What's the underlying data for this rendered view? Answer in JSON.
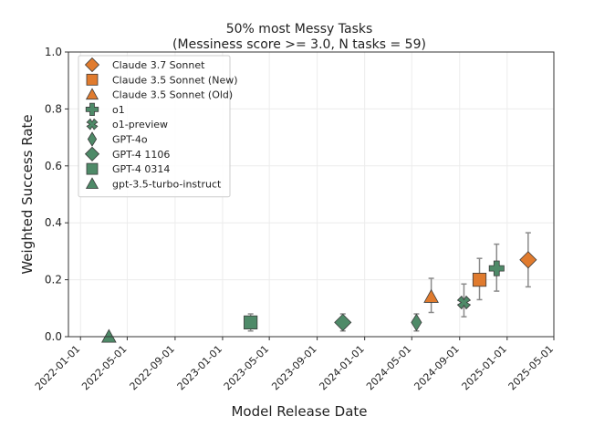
{
  "chart_data": {
    "type": "scatter",
    "title": "50% most Messy Tasks",
    "subtitle": "(Messiness score >= 3.0, N tasks = 59)",
    "xlabel": "Model Release Date",
    "ylabel": "Weighted Success Rate",
    "ylim": [
      0.0,
      1.0
    ],
    "xlim": [
      "2021-12-01",
      "2025-05-01"
    ],
    "x_ticks": [
      "2022-01-01",
      "2022-05-01",
      "2022-09-01",
      "2023-01-01",
      "2023-05-01",
      "2023-09-01",
      "2024-01-01",
      "2024-05-01",
      "2024-09-01",
      "2025-01-01",
      "2025-05-01"
    ],
    "y_ticks": [
      "0.0",
      "0.2",
      "0.4",
      "0.6",
      "0.8",
      "1.0"
    ],
    "grid": true,
    "legend_position": "top-left",
    "colors": {
      "anthropic": "#e07b2e",
      "openai": "#4e8a68",
      "edge": "#3a3a3a",
      "errorbar": "#8a8a8a"
    },
    "series": [
      {
        "name": "Claude 3.7 Sonnet",
        "marker": "diamond",
        "color": "#e07b2e",
        "x": "2025-02-24",
        "y": 0.27,
        "yerr": [
          0.175,
          0.365
        ]
      },
      {
        "name": "Claude 3.5 Sonnet (New)",
        "marker": "square",
        "color": "#e07b2e",
        "x": "2024-10-22",
        "y": 0.2,
        "yerr": [
          0.13,
          0.275
        ]
      },
      {
        "name": "Claude 3.5 Sonnet (Old)",
        "marker": "triangle",
        "color": "#e07b2e",
        "x": "2024-06-20",
        "y": 0.14,
        "yerr": [
          0.085,
          0.205
        ]
      },
      {
        "name": "o1",
        "marker": "plus",
        "color": "#4e8a68",
        "x": "2024-12-05",
        "y": 0.24,
        "yerr": [
          0.16,
          0.325
        ]
      },
      {
        "name": "o1-preview",
        "marker": "x",
        "color": "#4e8a68",
        "x": "2024-09-12",
        "y": 0.12,
        "yerr": [
          0.07,
          0.185
        ]
      },
      {
        "name": "GPT-4o",
        "marker": "thin_diamond",
        "color": "#4e8a68",
        "x": "2024-05-13",
        "y": 0.05,
        "yerr": [
          0.02,
          0.08
        ]
      },
      {
        "name": "GPT-4 1106",
        "marker": "diamond",
        "color": "#4e8a68",
        "x": "2023-11-06",
        "y": 0.05,
        "yerr": [
          0.02,
          0.08
        ]
      },
      {
        "name": "GPT-4 0314",
        "marker": "square",
        "color": "#4e8a68",
        "x": "2023-03-14",
        "y": 0.05,
        "yerr": [
          0.02,
          0.08
        ]
      },
      {
        "name": "gpt-3.5-turbo-instruct",
        "marker": "triangle",
        "color": "#4e8a68",
        "x": "2022-03-15",
        "y": 0.0,
        "yerr": [
          0.0,
          0.0
        ]
      }
    ]
  }
}
